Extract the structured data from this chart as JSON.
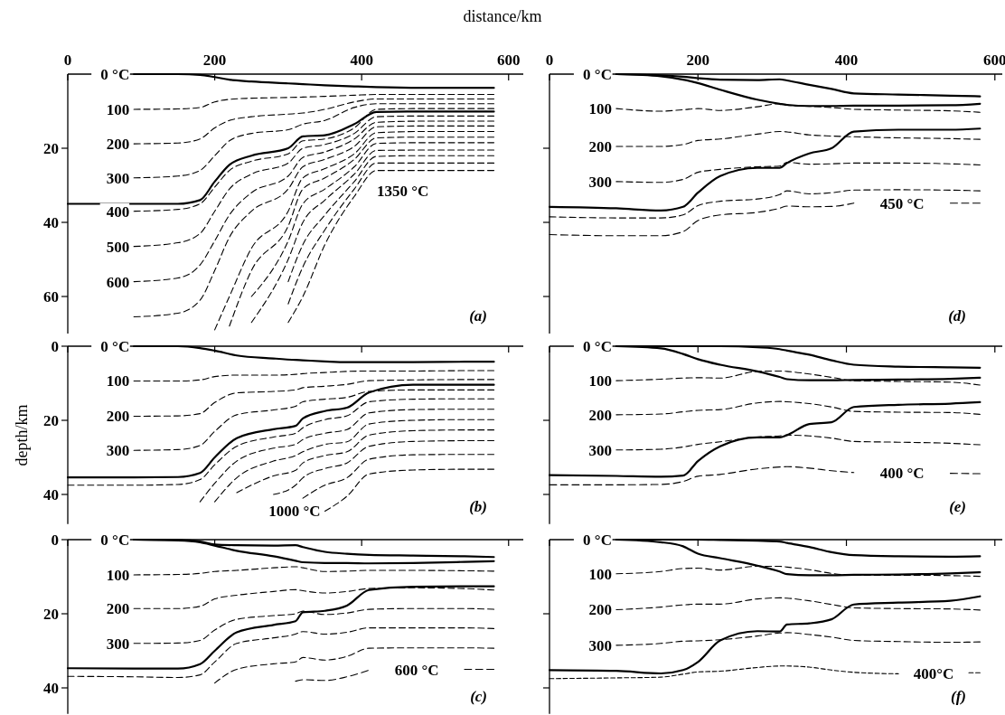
{
  "chart_data": [
    {
      "type": "line",
      "xlabel": "distance/km",
      "x": [
        0,
        90,
        150,
        180,
        200,
        220,
        250,
        300,
        320,
        350,
        390,
        420,
        480,
        580
      ],
      "xlim": [
        0,
        620
      ],
      "xticks": [
        0,
        200,
        400,
        600
      ],
      "ylim": [
        70,
        0
      ],
      "yticks": [
        20,
        40,
        60
      ],
      "series": [
        {
          "name": "0 °C",
          "color": "#000000",
          "line_style": "solid",
          "values": [
            null,
            0,
            0,
            0.2,
            0.8,
            1.5,
            2,
            2.5,
            2.7,
            3,
            3.3,
            3.5,
            3.7,
            3.7
          ]
        },
        {
          "color": "#000000",
          "line_style": "solid",
          "values": [
            35,
            35,
            35,
            34,
            29,
            24.5,
            22,
            20,
            16.8,
            16.5,
            13.5,
            10.2,
            10.1,
            10.1
          ]
        },
        {
          "name": "100",
          "color": "#000000",
          "line_style": "dashed",
          "values": [
            null,
            9.5,
            9.4,
            9,
            7.5,
            6.8,
            6.5,
            6.3,
            6.2,
            6,
            5.7,
            5.5,
            5.5,
            5.5
          ]
        },
        {
          "name": "200",
          "color": "#000000",
          "line_style": "dashed",
          "values": [
            null,
            18.8,
            18.6,
            17.5,
            14.5,
            12.5,
            11.5,
            10.8,
            10.5,
            9.5,
            7.5,
            6.7,
            6.7,
            6.7
          ]
        },
        {
          "name": "300",
          "color": "#000000",
          "line_style": "dashed",
          "values": [
            null,
            28,
            27.5,
            26,
            22,
            18,
            16,
            15,
            13.5,
            12.5,
            9,
            8,
            8,
            8
          ]
        },
        {
          "name": "400",
          "color": "#000000",
          "line_style": "dashed",
          "values": [
            null,
            37,
            36.5,
            35,
            30.5,
            26,
            23.5,
            21.5,
            18,
            17.5,
            14.5,
            9.5,
            9.3,
            9.3
          ]
        },
        {
          "name": "500",
          "color": "#000000",
          "line_style": "dashed",
          "values": [
            null,
            46.5,
            45.5,
            43,
            37,
            31,
            27,
            24,
            20,
            19,
            16,
            11.5,
            11.3,
            11.3
          ]
        },
        {
          "name": "600",
          "color": "#000000",
          "line_style": "dashed",
          "values": [
            null,
            56,
            55,
            51.5,
            45,
            38,
            32,
            27.5,
            22.5,
            21,
            17.5,
            13,
            12.7,
            12.7
          ]
        },
        {
          "color": "#000000",
          "line_style": "dashed",
          "values": [
            null,
            65.5,
            64.5,
            61,
            53,
            44,
            37,
            31,
            25,
            23,
            19.5,
            14.2,
            14,
            14
          ]
        },
        {
          "color": "#000000",
          "line_style": "dashed",
          "values": [
            null,
            null,
            null,
            null,
            69,
            60,
            47,
            37,
            28,
            25.5,
            21.5,
            15.8,
            15.5,
            15.5
          ]
        },
        {
          "color": "#000000",
          "line_style": "dashed",
          "values": [
            null,
            null,
            null,
            null,
            null,
            68,
            53,
            41,
            31,
            28,
            23,
            17.2,
            17,
            17
          ]
        },
        {
          "color": "#000000",
          "line_style": "dashed",
          "values": [
            null,
            null,
            null,
            null,
            null,
            null,
            60,
            45,
            35,
            31,
            25,
            18.7,
            18.5,
            18.5
          ]
        },
        {
          "color": "#000000",
          "line_style": "dashed",
          "values": [
            null,
            null,
            null,
            null,
            null,
            null,
            67,
            50,
            40,
            34,
            27,
            20.6,
            20.5,
            20.5
          ]
        },
        {
          "color": "#000000",
          "line_style": "dashed",
          "values": [
            null,
            null,
            null,
            null,
            null,
            null,
            null,
            56,
            46,
            38,
            29,
            22.2,
            22,
            22
          ]
        },
        {
          "color": "#000000",
          "line_style": "dashed",
          "values": [
            null,
            null,
            null,
            null,
            null,
            null,
            null,
            62,
            52,
            42,
            31,
            24,
            24,
            24
          ]
        },
        {
          "color": "#000000",
          "line_style": "dashed",
          "values": [
            null,
            null,
            null,
            null,
            null,
            null,
            null,
            67,
            60,
            46,
            33,
            26,
            26,
            26
          ]
        }
      ],
      "annotations": [
        "1350 °C",
        "(a)"
      ]
    },
    {
      "type": "line",
      "ylabel": "depth/km",
      "x": [
        0,
        90,
        150,
        180,
        200,
        230,
        280,
        310,
        320,
        350,
        380,
        410,
        470,
        540,
        580
      ],
      "xlim": [
        0,
        620
      ],
      "xticks": [
        0,
        200,
        400,
        600
      ],
      "ylim": [
        48,
        0
      ],
      "yticks": [
        0,
        20,
        40
      ],
      "tick_labels": "y",
      "series": [
        {
          "name": "0 °C",
          "color": "#000000",
          "line_style": "solid",
          "values": [
            null,
            0,
            0,
            0.5,
            1.2,
            2.5,
            3.3,
            3.7,
            3.8,
            4.1,
            4.3,
            4.3,
            4.3,
            4.2,
            4.2
          ]
        },
        {
          "color": "#000000",
          "line_style": "solid",
          "values": [
            35.4,
            35.4,
            35.3,
            34.2,
            30,
            24.8,
            22.4,
            21.5,
            19.5,
            17.5,
            16.6,
            12.5,
            10.4,
            10.4,
            10.4
          ]
        },
        {
          "name": "100",
          "color": "#000000",
          "line_style": "dashed",
          "values": [
            null,
            9.4,
            9.4,
            9.1,
            8.2,
            7.8,
            7.8,
            7.6,
            7.4,
            7.1,
            6.8,
            6.7,
            6.7,
            6.6,
            6.6
          ]
        },
        {
          "name": "200",
          "color": "#000000",
          "line_style": "dashed",
          "values": [
            null,
            18.9,
            18.8,
            18.2,
            15.2,
            12.6,
            12.2,
            11.8,
            11.2,
            10.8,
            10.3,
            9.3,
            9.1,
            9,
            9
          ]
        },
        {
          "name": "300",
          "color": "#000000",
          "line_style": "dashed",
          "values": [
            null,
            28.1,
            27.9,
            26.8,
            23,
            18.5,
            17.2,
            16.2,
            15,
            14.3,
            13.8,
            12.2,
            11.8,
            11.8,
            11.8
          ]
        },
        {
          "color": "#000000",
          "line_style": "dashed",
          "values": [
            37.5,
            37.5,
            37.3,
            36,
            32,
            27,
            24.5,
            23.5,
            22,
            19.8,
            18.8,
            15,
            14.3,
            14.2,
            14.2
          ]
        },
        {
          "color": "#000000",
          "line_style": "dashed",
          "values": [
            null,
            null,
            null,
            42,
            37,
            31,
            27.5,
            26.5,
            25.2,
            23.5,
            22.5,
            18,
            17.1,
            17,
            17
          ]
        },
        {
          "color": "#000000",
          "line_style": "dashed",
          "values": [
            null,
            null,
            null,
            null,
            42,
            35.5,
            31,
            29.5,
            28.5,
            26.5,
            25.8,
            21,
            20,
            19.8,
            19.8
          ]
        },
        {
          "color": "#000000",
          "line_style": "dashed",
          "values": [
            null,
            null,
            null,
            null,
            null,
            39.5,
            35,
            33.5,
            31.5,
            29.5,
            28.5,
            24,
            22.8,
            22.6,
            22.6
          ]
        },
        {
          "color": "#000000",
          "line_style": "dashed",
          "values": [
            null,
            null,
            null,
            null,
            null,
            null,
            40,
            37.5,
            35.5,
            33,
            31.5,
            27,
            25.7,
            25.5,
            25.5
          ]
        },
        {
          "color": "#000000",
          "line_style": "dashed",
          "values": [
            null,
            null,
            null,
            null,
            null,
            null,
            null,
            null,
            41,
            37.5,
            35.5,
            30.5,
            29.3,
            29.2,
            29.2
          ]
        },
        {
          "name": "1000 °C",
          "color": "#000000",
          "line_style": "dashed",
          "values": [
            null,
            null,
            null,
            null,
            null,
            null,
            null,
            null,
            null,
            44.5,
            40.5,
            34.5,
            33.4,
            33.2,
            33.2
          ]
        }
      ],
      "annotations": [
        "(b)"
      ]
    },
    {
      "type": "line",
      "x": [
        0,
        90,
        150,
        180,
        200,
        230,
        280,
        310,
        320,
        350,
        380,
        410,
        470,
        540,
        580
      ],
      "xlim": [
        0,
        620
      ],
      "xticks": [
        0,
        200,
        400,
        600
      ],
      "ylim": [
        47,
        0
      ],
      "yticks": [
        0,
        20,
        40
      ],
      "tick_labels": "y",
      "series": [
        {
          "name": "0 °C",
          "color": "#000000",
          "line_style": "solid",
          "values": [
            null,
            0,
            0.2,
            0.7,
            1.6,
            3,
            4.5,
            5.7,
            6.1,
            6.3,
            6.3,
            6.4,
            6.3,
            6,
            5.8
          ]
        },
        {
          "color": "#000000",
          "line_style": "solid",
          "values": [
            null,
            0,
            0.1,
            0.5,
            1.3,
            1.5,
            1.6,
            1.5,
            2,
            3.3,
            3.8,
            4.1,
            4.3,
            4.5,
            4.7
          ]
        },
        {
          "color": "#000000",
          "line_style": "solid",
          "values": [
            34.7,
            34.8,
            34.8,
            33.6,
            30,
            25,
            23,
            22,
            19.6,
            19.2,
            17.8,
            13.6,
            12.7,
            12.6,
            12.6
          ]
        },
        {
          "name": "100",
          "color": "#000000",
          "line_style": "dashed",
          "values": [
            null,
            9.5,
            9.4,
            9.1,
            8.6,
            8.3,
            7.6,
            7.3,
            7.6,
            8.6,
            8.5,
            8.3,
            8.3,
            8.4,
            8.5
          ]
        },
        {
          "name": "200",
          "color": "#000000",
          "line_style": "dashed",
          "values": [
            null,
            18.6,
            18.6,
            18,
            16,
            15,
            14,
            13.5,
            13.8,
            14.4,
            14,
            13.2,
            13,
            13.2,
            13.6
          ]
        },
        {
          "name": "300",
          "color": "#000000",
          "line_style": "dashed",
          "values": [
            null,
            28,
            27.9,
            27.2,
            24.4,
            21.5,
            20.5,
            20,
            19.3,
            20.2,
            19.8,
            18.8,
            18.6,
            18.6,
            18.8
          ]
        },
        {
          "color": "#000000",
          "line_style": "dashed",
          "values": [
            36.9,
            37,
            37.2,
            36.5,
            33,
            28,
            26.5,
            25.5,
            24.8,
            25.5,
            25,
            23.8,
            23.8,
            23.8,
            24
          ]
        },
        {
          "color": "#000000",
          "line_style": "dashed",
          "values": [
            null,
            null,
            null,
            null,
            38.7,
            35,
            33.5,
            33,
            31.8,
            32.5,
            31.5,
            29.3,
            29.2,
            29.2,
            29.3
          ]
        },
        {
          "name": "600 °C",
          "color": "#000000",
          "line_style": "dashed",
          "values": [
            null,
            null,
            null,
            null,
            null,
            null,
            null,
            38.2,
            37.8,
            38,
            37,
            35.2,
            null,
            35,
            35
          ]
        }
      ],
      "annotations": [
        "(c)"
      ]
    },
    {
      "type": "line",
      "x": [
        0,
        90,
        150,
        180,
        200,
        230,
        280,
        310,
        320,
        350,
        380,
        410,
        470,
        540,
        580
      ],
      "xlim": [
        0,
        610
      ],
      "xticks": [
        0,
        200,
        400,
        600
      ],
      "ylim": [
        70,
        0
      ],
      "yticks": [
        20,
        40,
        60
      ],
      "tick_labels": "x",
      "series": [
        {
          "name": "0 °C",
          "color": "#000000",
          "line_style": "solid",
          "values": [
            null,
            0,
            0.6,
            1.5,
            2.4,
            4.2,
            6.9,
            8,
            8.3,
            8.6,
            8.6,
            8.5,
            8.5,
            8.4,
            8
          ]
        },
        {
          "color": "#000000",
          "line_style": "solid",
          "values": [
            null,
            0,
            0.3,
            0.7,
            1.1,
            1.5,
            1.6,
            1.4,
            1.7,
            2.9,
            4,
            5.2,
            5.5,
            5.8,
            6
          ]
        },
        {
          "name": "100",
          "color": "#000000",
          "line_style": "dashed",
          "values": [
            null,
            9.3,
            10,
            9.6,
            9.3,
            9.8,
            8.8,
            8,
            8.4,
            8.7,
            9,
            9.5,
            9.7,
            9.9,
            10.3
          ]
        },
        {
          "name": "200",
          "color": "#000000",
          "line_style": "dashed",
          "values": [
            null,
            19.5,
            19.5,
            19,
            17.9,
            17.5,
            16.2,
            15.5,
            15.6,
            16.4,
            16.7,
            16.9,
            17.2,
            17.4,
            17.6
          ]
        },
        {
          "color": "#000000",
          "line_style": "solid",
          "values": [
            35.8,
            36.2,
            36.8,
            35.8,
            32,
            27.5,
            25.3,
            25.3,
            24,
            21.4,
            20,
            15.5,
            15,
            15,
            14.7
          ]
        },
        {
          "name": "300",
          "color": "#000000",
          "line_style": "dashed",
          "values": [
            null,
            29,
            29.2,
            28.4,
            26.5,
            25.7,
            25,
            24.8,
            23.8,
            24.3,
            24.2,
            24,
            24,
            24.2,
            24.5
          ]
        },
        {
          "color": "#000000",
          "line_style": "dashed",
          "values": [
            38.5,
            38.8,
            38.8,
            38,
            35.5,
            34.3,
            33.7,
            32.5,
            31.5,
            32.3,
            32,
            31.3,
            31.2,
            31.3,
            31.5
          ]
        },
        {
          "name": "450 °C",
          "color": "#000000",
          "line_style": "dashed",
          "values": [
            43.3,
            43.6,
            43.6,
            42.5,
            39.5,
            38,
            37.3,
            36.2,
            35.6,
            35.8,
            35.7,
            34.8,
            null,
            34.8,
            34.8
          ]
        }
      ],
      "annotations": [
        "(d)"
      ]
    },
    {
      "type": "line",
      "x": [
        0,
        90,
        150,
        180,
        200,
        230,
        280,
        310,
        320,
        350,
        380,
        410,
        470,
        540,
        580
      ],
      "xlim": [
        0,
        610
      ],
      "xticks": [
        0,
        200,
        400,
        600
      ],
      "ylim": [
        48,
        0
      ],
      "yticks": [
        20,
        40
      ],
      "tick_labels": false,
      "series": [
        {
          "name": "0 °C",
          "color": "#000000",
          "line_style": "solid",
          "values": [
            null,
            0,
            0.6,
            2.1,
            3.5,
            5,
            6.8,
            8.3,
            8.9,
            9.2,
            9.2,
            9.1,
            9,
            8.8,
            8.5
          ]
        },
        {
          "color": "#000000",
          "line_style": "solid",
          "values": [
            null,
            0,
            0,
            0,
            0,
            0,
            0.3,
            0.8,
            1.2,
            2.3,
            3.8,
            5,
            5.5,
            5.7,
            5.8
          ]
        },
        {
          "name": "100",
          "color": "#000000",
          "line_style": "dashed",
          "values": [
            null,
            9.3,
            8.9,
            8.6,
            8.5,
            8.6,
            6.8,
            6.7,
            6.8,
            7.5,
            8.4,
            9.3,
            9.5,
            9.7,
            10.5
          ]
        },
        {
          "name": "200",
          "color": "#000000",
          "line_style": "dashed",
          "values": [
            null,
            18.5,
            18.3,
            17.7,
            17.3,
            17.1,
            15.3,
            14.9,
            15,
            15.5,
            16.4,
            17.6,
            17.8,
            17.9,
            18.4
          ]
        },
        {
          "color": "#000000",
          "line_style": "solid",
          "values": [
            34.8,
            35,
            35.2,
            34.9,
            31,
            27,
            24.6,
            24.6,
            24,
            21,
            20.5,
            16.4,
            15.8,
            15.5,
            15.1
          ]
        },
        {
          "name": "300",
          "color": "#000000",
          "line_style": "dashed",
          "values": [
            null,
            28,
            27.8,
            27.2,
            26.5,
            25.8,
            24.5,
            24.2,
            24,
            24.2,
            24.8,
            25.7,
            25.9,
            26.2,
            26.6
          ]
        },
        {
          "name": "400 °C",
          "color": "#000000",
          "line_style": "dashed",
          "values": [
            37.4,
            37.4,
            37.3,
            36.5,
            35.1,
            34.6,
            33.1,
            32.6,
            32.5,
            32.9,
            33.6,
            34.1,
            null,
            34.3,
            34.4
          ]
        }
      ],
      "annotations": [
        "(e)"
      ]
    },
    {
      "type": "line",
      "x": [
        0,
        90,
        150,
        180,
        200,
        230,
        280,
        310,
        320,
        350,
        380,
        410,
        470,
        540,
        580
      ],
      "xlim": [
        0,
        610
      ],
      "xticks": [
        0,
        200,
        400,
        600
      ],
      "ylim": [
        47,
        0
      ],
      "yticks": [
        20,
        40
      ],
      "tick_labels": false,
      "series": [
        {
          "name": "0 °C",
          "color": "#000000",
          "line_style": "solid",
          "values": [
            null,
            0,
            0.7,
            1.8,
            3.8,
            5,
            7,
            8.6,
            9.3,
            9.6,
            9.6,
            9.5,
            9.4,
            9.1,
            8.8
          ]
        },
        {
          "color": "#000000",
          "line_style": "solid",
          "values": [
            null,
            0,
            0,
            0,
            0,
            0.1,
            0.3,
            0.5,
            0.9,
            2,
            3.4,
            4.2,
            4.5,
            4.6,
            4.5
          ]
        },
        {
          "name": "100",
          "color": "#000000",
          "line_style": "dashed",
          "values": [
            null,
            9.2,
            8.6,
            7.8,
            7.7,
            8.2,
            7.2,
            7.2,
            7.4,
            8.1,
            9.1,
            9.6,
            9.6,
            9.7,
            9.9
          ]
        },
        {
          "name": "200",
          "color": "#000000",
          "line_style": "dashed",
          "values": [
            null,
            18.9,
            18.2,
            17.6,
            17.4,
            17.4,
            16,
            15.7,
            15.8,
            16.5,
            17.5,
            18.4,
            18.6,
            18.7,
            19
          ]
        },
        {
          "color": "#000000",
          "line_style": "solid",
          "values": [
            35.2,
            35.4,
            36.1,
            35.2,
            33,
            27.2,
            24.7,
            24.8,
            22.9,
            22.6,
            21.5,
            17.5,
            17,
            16.5,
            15.3
          ]
        },
        {
          "name": "300",
          "color": "#000000",
          "line_style": "dashed",
          "values": [
            null,
            28.5,
            28,
            27.4,
            27.3,
            27,
            26,
            25.2,
            25.1,
            25.6,
            26.3,
            27.2,
            27.5,
            27.7,
            27.6
          ]
        },
        {
          "name": "400°C",
          "color": "#000000",
          "line_style": "dashed",
          "x": [
            0,
            90,
            150,
            180,
            200,
            230,
            280,
            310,
            320,
            350,
            380,
            410,
            470,
            520,
            565,
            580
          ],
          "values": [
            37.5,
            37.3,
            37.1,
            36.3,
            35.7,
            35.5,
            34.5,
            34.1,
            34.1,
            34.4,
            35.2,
            35.8,
            36.2,
            null,
            35.9,
            35.9
          ]
        }
      ],
      "annotations": [
        "(f)"
      ]
    }
  ]
}
